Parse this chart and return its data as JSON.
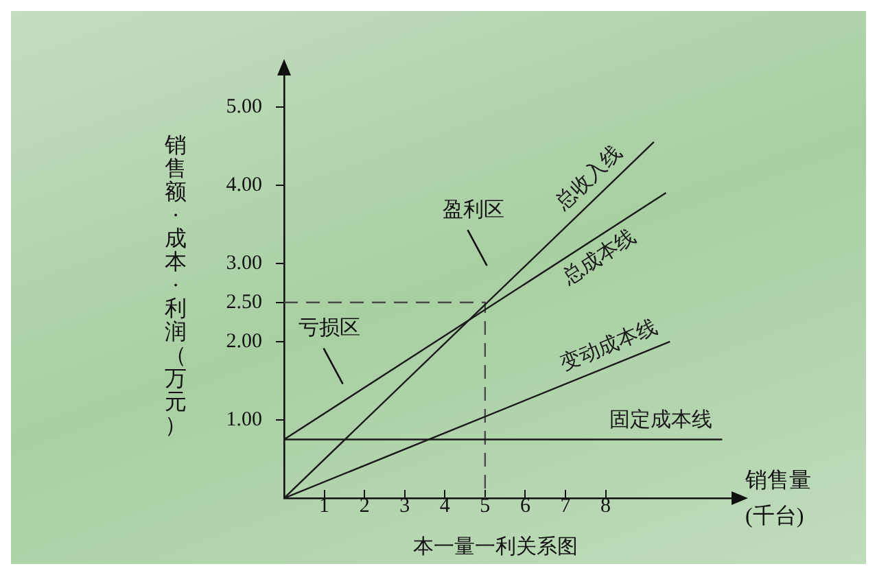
{
  "chart_data": {
    "type": "line",
    "title": "本一量一利关系图",
    "xlabel": "销售量\n(千台)",
    "ylabel": "销售额·成本·利润（万元）",
    "xlim": [
      0,
      11.2
    ],
    "ylim": [
      0,
      5.4
    ],
    "xticks": [
      1,
      2,
      3,
      4,
      5,
      6,
      7,
      8
    ],
    "yticks": [
      {
        "value": 1,
        "label": "1.00"
      },
      {
        "value": 2,
        "label": "2.00"
      },
      {
        "value": 2.5,
        "label": "2.50"
      },
      {
        "value": 3,
        "label": "3.00"
      },
      {
        "value": 4,
        "label": "4.00"
      },
      {
        "value": 5,
        "label": "5.00"
      }
    ],
    "grid": false,
    "legend": false,
    "marker": "none",
    "line_style": "solid",
    "series": [
      {
        "name": "总收入线",
        "color": "#1a1a1a",
        "x": [
          0,
          9.2
        ],
        "values": [
          0,
          4.55
        ]
      },
      {
        "name": "总成本线",
        "color": "#1a1a1a",
        "x": [
          0,
          9.5
        ],
        "values": [
          0.75,
          3.9
        ]
      },
      {
        "name": "变动成本线",
        "color": "#1a1a1a",
        "x": [
          0,
          9.6
        ],
        "values": [
          0,
          2.0
        ]
      },
      {
        "name": "固定成本线",
        "color": "#1a1a1a",
        "x": [
          0,
          10.9
        ],
        "values": [
          0.75,
          0.75
        ]
      },
      {
        "type": "line",
        "color": "#4a4a4a",
        "line_style": "dashed",
        "x": [
          0,
          5,
          5
        ],
        "values": [
          2.5,
          2.5,
          0
        ]
      }
    ],
    "annotations": [
      "盈利区",
      "亏损区"
    ]
  }
}
